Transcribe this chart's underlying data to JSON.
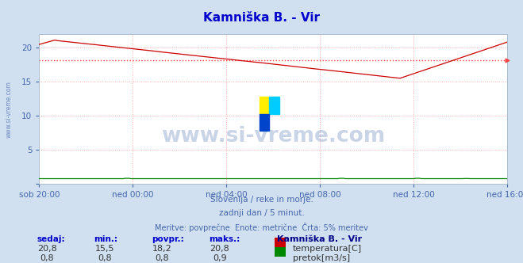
{
  "title": "Kamniška B. - Vir",
  "title_color": "#0000cc",
  "bg_color": "#d0e0f0",
  "plot_bg_color": "#ffffff",
  "grid_color": "#ffaaaa",
  "grid_style": ":",
  "xlabel_color": "#4466aa",
  "ylabel_color": "#4466aa",
  "x_tick_labels": [
    "sob 20:00",
    "ned 00:00",
    "ned 04:00",
    "ned 08:00",
    "ned 12:00",
    "ned 16:00"
  ],
  "x_tick_positions": [
    0,
    48,
    96,
    144,
    192,
    240
  ],
  "xlim": [
    0,
    240
  ],
  "ylim": [
    0,
    22
  ],
  "y_ticks": [
    0,
    5,
    10,
    15,
    20
  ],
  "total_points": 241,
  "avg_temp": 18.2,
  "avg_line_color": "#ff4444",
  "temp_line_color": "#cc0000",
  "flow_line_color": "#008800",
  "watermark_color": "#4466aa",
  "watermark_alpha": 0.28,
  "watermark_text": "www.si-vreme.com",
  "sub_text1": "Slovenija / reke in morje.",
  "sub_text2": "zadnji dan / 5 minut.",
  "sub_text3": "Meritve: povprečne  Enote: metrične  Črta: 5% meritev",
  "sub_text_color": "#4466aa",
  "legend_title": "Kamniška B. - Vir",
  "legend_title_color": "#000088",
  "legend_label1": "temperatura[C]",
  "legend_label2": "pretok[m3/s]",
  "legend_color1": "#cc0000",
  "legend_color2": "#008800",
  "stats_color": "#0000cc",
  "stats_labels": [
    "sedaj:",
    "min.:",
    "povpr.:",
    "maks.:"
  ],
  "stats_temp": [
    "20,8",
    "15,5",
    "18,2",
    "20,8"
  ],
  "stats_flow": [
    "0,8",
    "0,8",
    "0,8",
    "0,9"
  ],
  "left_label": "www.si-vreme.com",
  "left_label_color": "#4466aa"
}
